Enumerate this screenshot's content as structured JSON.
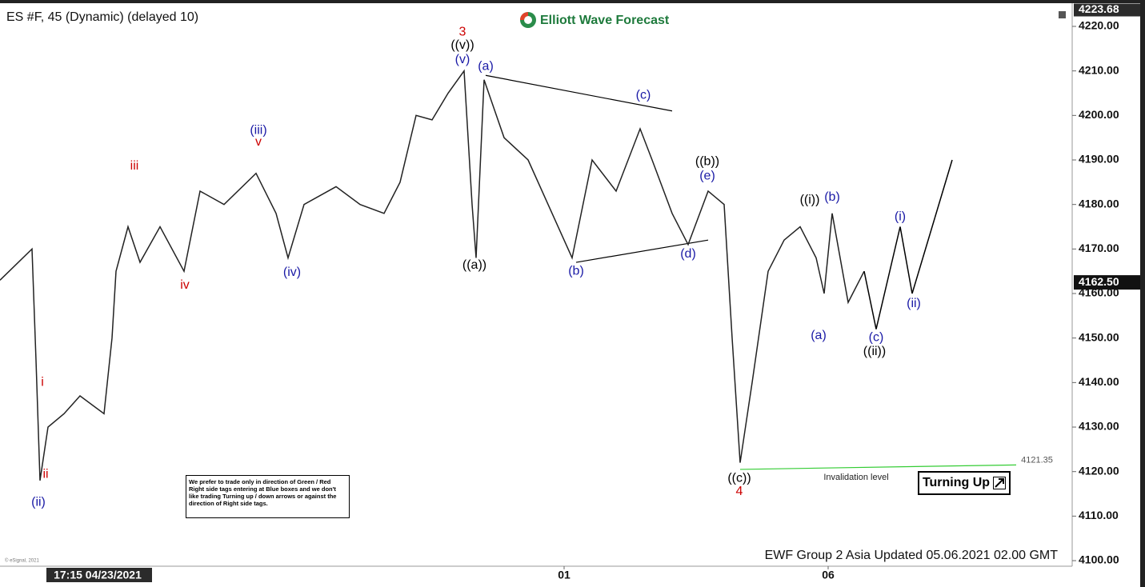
{
  "chart_data": {
    "type": "line",
    "title": "ES #F, 45 (Dynamic) (delayed 10)",
    "brand": "Elliott Wave Forecast",
    "footer": "EWF Group 2 Asia Updated 05.06.2021 02.00 GMT",
    "copyright": "© eSignal, 2021",
    "note": "We prefer to trade only in direction of Green / Red Right side tags entering at Blue boxes and we don't like trading Turning up / down arrows or against the direction of Right side tags.",
    "badge": "Turning Up",
    "xlim": [
      0,
      268
    ],
    "xticks": [
      {
        "value": 12,
        "label": "17:15 04/23/2021"
      },
      {
        "value": 141,
        "label": "01"
      },
      {
        "value": 207,
        "label": "06"
      }
    ],
    "ylim": [
      4098.75,
      4224.49
    ],
    "yticks": [
      {
        "value": 4220,
        "label": "4220.00"
      },
      {
        "value": 4210,
        "label": "4210.00"
      },
      {
        "value": 4200,
        "label": "4200.00"
      },
      {
        "value": 4190,
        "label": "4190.00"
      },
      {
        "value": 4180,
        "label": "4180.00"
      },
      {
        "value": 4170,
        "label": "4170.00"
      },
      {
        "value": 4160,
        "label": "4160.00"
      },
      {
        "value": 4150,
        "label": "4150.00"
      },
      {
        "value": 4140,
        "label": "4140.00"
      },
      {
        "value": 4130,
        "label": "4130.00"
      },
      {
        "value": 4120,
        "label": "4120.00"
      },
      {
        "value": 4110,
        "label": "4110.00"
      },
      {
        "value": 4100,
        "label": "4100.00"
      }
    ],
    "series": [
      {
        "color": "#222222",
        "x": [
          0,
          8,
          9,
          10,
          12,
          16,
          20,
          26,
          28,
          29,
          32,
          35,
          40,
          46,
          50,
          56,
          64,
          69,
          72,
          76,
          84,
          90,
          96,
          100,
          104,
          108,
          112,
          116,
          118,
          119,
          121,
          126,
          132,
          137,
          143,
          148,
          154,
          160,
          163,
          168,
          172,
          177,
          181,
          183,
          185,
          188,
          192,
          196,
          200,
          204,
          206,
          208,
          212,
          216
        ],
        "values": [
          4163,
          4170,
          4145,
          4118,
          4130,
          4133,
          4137,
          4133,
          4150,
          4165,
          4175,
          4167,
          4175,
          4165,
          4183,
          4180,
          4187,
          4178,
          4168,
          4180,
          4184,
          4180,
          4178,
          4185,
          4200,
          4199,
          4205,
          4210,
          4180,
          4168,
          4208,
          4195,
          4190,
          4180,
          4168,
          4190,
          4183,
          4197,
          4190,
          4178,
          4171,
          4183,
          4180,
          4150,
          4122,
          4140,
          4165,
          4172,
          4175,
          4168,
          4160,
          4178,
          4158,
          4165
        ]
      },
      {
        "color": "#000000",
        "x": [
          216,
          219,
          225,
          228,
          238
        ],
        "values": [
          4165,
          4152,
          4175,
          4160,
          4190
        ]
      }
    ],
    "trendlines": [
      {
        "x": [
          121.4,
          168
        ],
        "y": [
          4209,
          4201
        ],
        "color": "#000000"
      },
      {
        "x": [
          144,
          177
        ],
        "y": [
          4167,
          4172
        ],
        "color": "#000000"
      },
      {
        "x": [
          185,
          254
        ],
        "y": [
          4120.5,
          4121.5
        ],
        "color": "#33cc33"
      }
    ],
    "high_marker": 4223.68,
    "current_price": {
      "value": 4162.5,
      "label": "4162.50"
    },
    "annotations": [
      {
        "text": "3",
        "x": 115.6,
        "y": 4218.7,
        "color": "#cc0000"
      },
      {
        "text": "((v))",
        "x": 115.6,
        "y": 4215.7,
        "color": "#000000"
      },
      {
        "text": "(v)",
        "x": 115.6,
        "y": 4212.5,
        "color": "#1a1aa6"
      },
      {
        "text": "(a)",
        "x": 121.4,
        "y": 4211,
        "color": "#1a1aa6"
      },
      {
        "text": "(c)",
        "x": 160.8,
        "y": 4204.5,
        "color": "#1a1aa6"
      },
      {
        "text": "((b))",
        "x": 176.8,
        "y": 4189.6,
        "color": "#000000"
      },
      {
        "text": "(e)",
        "x": 176.8,
        "y": 4186.4,
        "color": "#1a1aa6"
      },
      {
        "text": "iii",
        "x": 33.6,
        "y": 4188.6,
        "color": "#cc0000"
      },
      {
        "text": "(iii)",
        "x": 64.6,
        "y": 4196.6,
        "color": "#1a1aa6"
      },
      {
        "text": "v",
        "x": 64.6,
        "y": 4194,
        "color": "#cc0000"
      },
      {
        "text": "iv",
        "x": 46.2,
        "y": 4161.8,
        "color": "#cc0000"
      },
      {
        "text": "(iv)",
        "x": 73,
        "y": 4164.7,
        "color": "#1a1aa6"
      },
      {
        "text": "((a))",
        "x": 118.6,
        "y": 4166.3,
        "color": "#000000"
      },
      {
        "text": "(b)",
        "x": 144,
        "y": 4165,
        "color": "#1a1aa6"
      },
      {
        "text": "(d)",
        "x": 172,
        "y": 4168.8,
        "color": "#1a1aa6"
      },
      {
        "text": "((i))",
        "x": 202.4,
        "y": 4181,
        "color": "#000000"
      },
      {
        "text": "(b)",
        "x": 208,
        "y": 4181.6,
        "color": "#1a1aa6"
      },
      {
        "text": "(i)",
        "x": 225,
        "y": 4177.2,
        "color": "#1a1aa6"
      },
      {
        "text": "(ii)",
        "x": 228.4,
        "y": 4157.7,
        "color": "#1a1aa6"
      },
      {
        "text": "(a)",
        "x": 204.6,
        "y": 4150.5,
        "color": "#1a1aa6"
      },
      {
        "text": "(c)",
        "x": 219,
        "y": 4150.1,
        "color": "#1a1aa6"
      },
      {
        "text": "((ii))",
        "x": 218.6,
        "y": 4146.9,
        "color": "#000000"
      },
      {
        "text": "i",
        "x": 10.6,
        "y": 4140,
        "color": "#cc0000"
      },
      {
        "text": "ii",
        "x": 11.4,
        "y": 4119.4,
        "color": "#cc0000"
      },
      {
        "text": "(ii)",
        "x": 9.6,
        "y": 4113.1,
        "color": "#1a1aa6"
      },
      {
        "text": "((c))",
        "x": 184.8,
        "y": 4118.5,
        "color": "#000000"
      },
      {
        "text": "4",
        "x": 184.8,
        "y": 4115.5,
        "color": "#cc0000"
      },
      {
        "text": "4121.35",
        "x": 259.2,
        "y": 4122.5,
        "color": "#555555"
      },
      {
        "text": "Invalidation level",
        "x": 214,
        "y": 4118.7,
        "color": "#222222"
      }
    ]
  }
}
